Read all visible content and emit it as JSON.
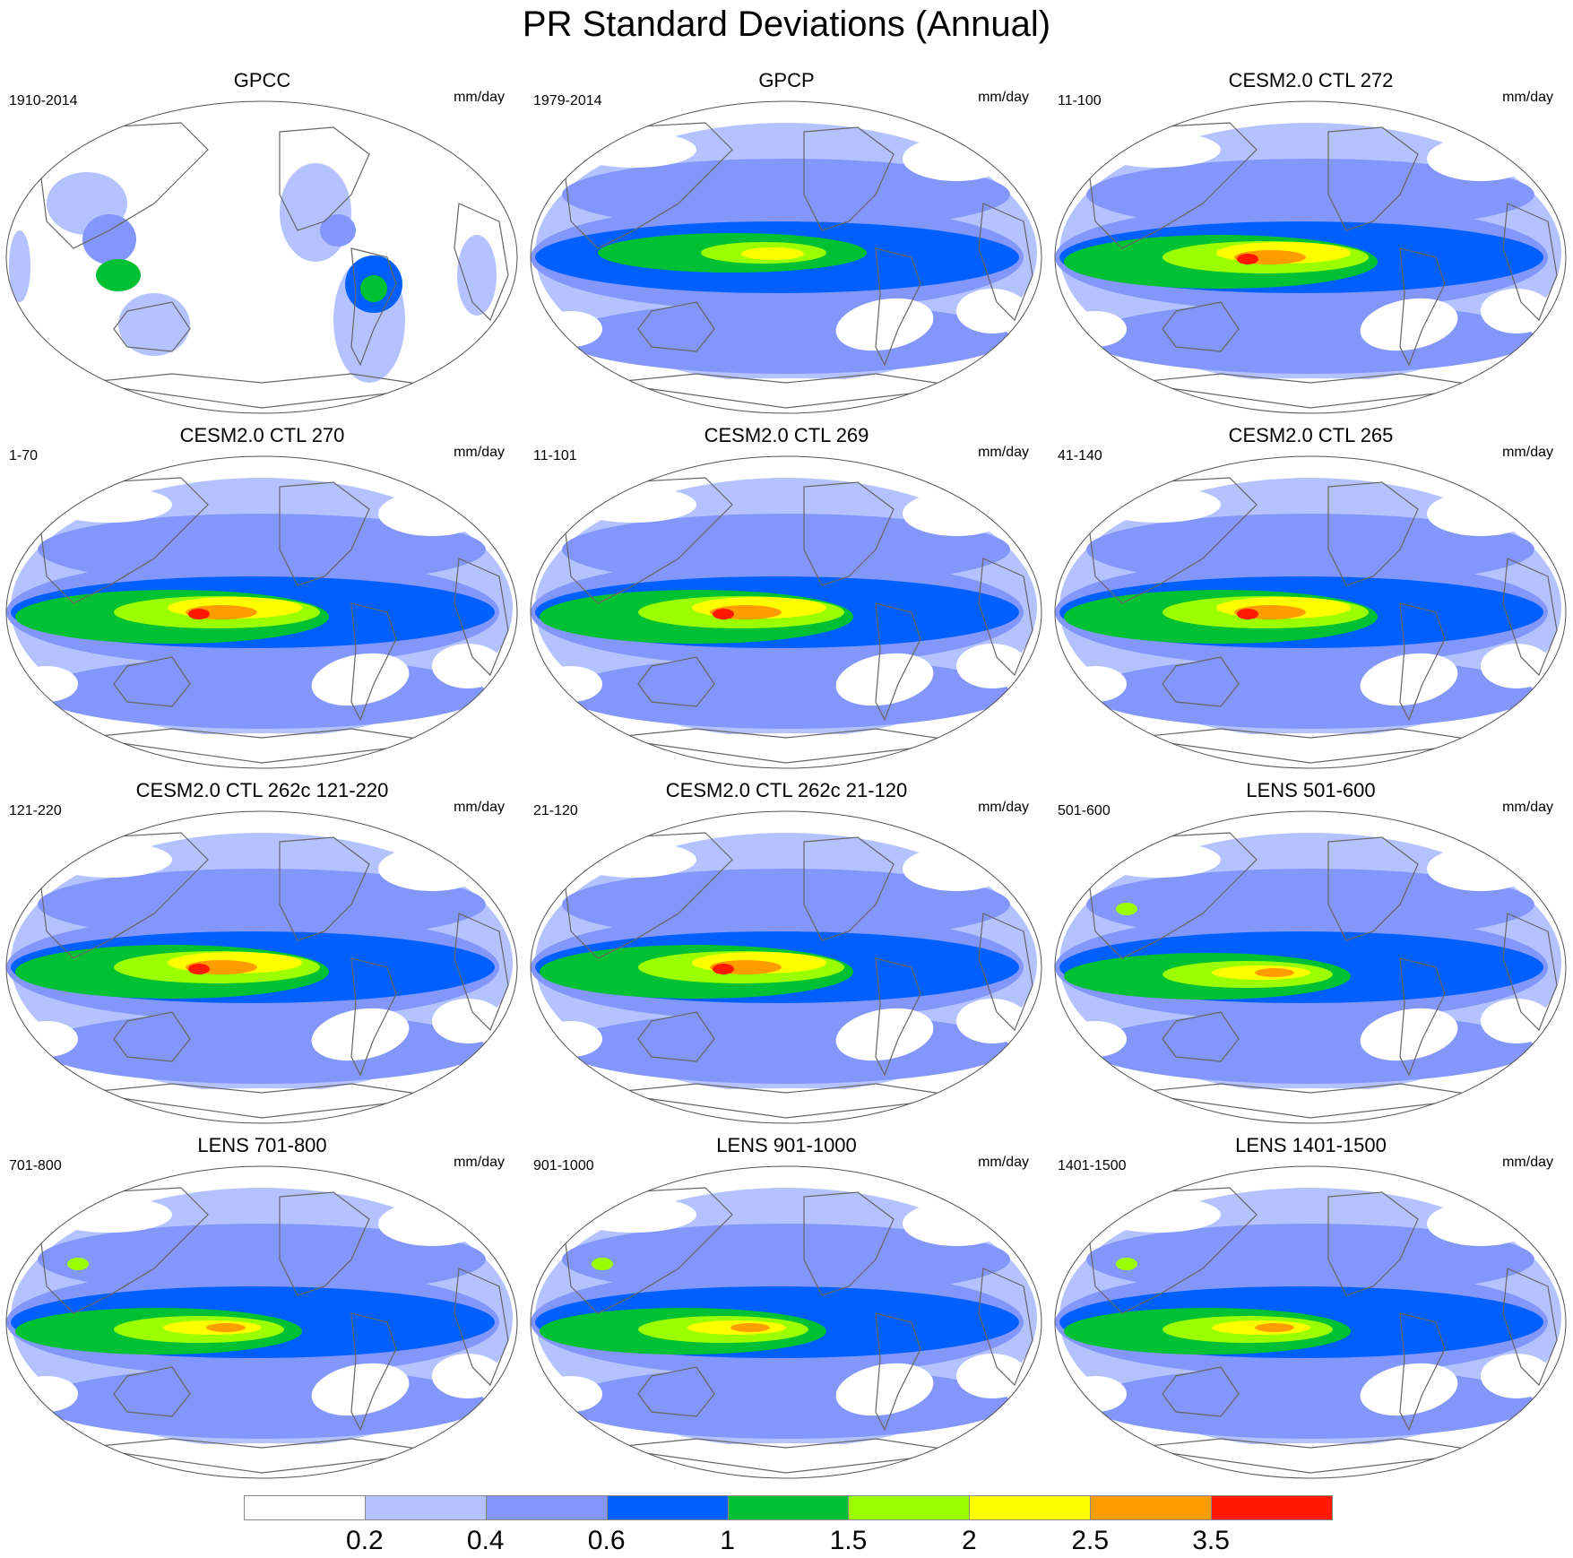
{
  "title": "PR Standard Deviations (Annual)",
  "units": "mm/day",
  "panels": [
    {
      "title": "GPCC",
      "years": "1910-2014",
      "pattern": "obs-land"
    },
    {
      "title": "GPCP",
      "years": "1979-2014",
      "pattern": "obs"
    },
    {
      "title": "CESM2.0 CTL 272",
      "years": "11-100",
      "pattern": "model-strong"
    },
    {
      "title": "CESM2.0 CTL 270",
      "years": "1-70",
      "pattern": "model-strong"
    },
    {
      "title": "CESM2.0 CTL 269",
      "years": "11-101",
      "pattern": "model-strong"
    },
    {
      "title": "CESM2.0 CTL 265",
      "years": "41-140",
      "pattern": "model-strong"
    },
    {
      "title": "CESM2.0 CTL 262c 121-220",
      "years": "121-220",
      "pattern": "model-strong"
    },
    {
      "title": "CESM2.0 CTL 262c 21-120",
      "years": "21-120",
      "pattern": "model-strong"
    },
    {
      "title": "LENS 501-600",
      "years": "501-600",
      "pattern": "lens"
    },
    {
      "title": "LENS 701-800",
      "years": "701-800",
      "pattern": "lens"
    },
    {
      "title": "LENS 901-1000",
      "years": "901-1000",
      "pattern": "lens"
    },
    {
      "title": "LENS 1401-1500",
      "years": "1401-1500",
      "pattern": "lens"
    }
  ],
  "colorbar": {
    "labels": [
      "0.2",
      "0.4",
      "0.6",
      "1",
      "1.5",
      "2",
      "2.5",
      "3.5"
    ],
    "colors": [
      "#ffffff",
      "#b4c3ff",
      "#8396fa",
      "#0060ff",
      "#00c034",
      "#9cff00",
      "#ffff00",
      "#ff9c00",
      "#ff1900"
    ]
  }
}
